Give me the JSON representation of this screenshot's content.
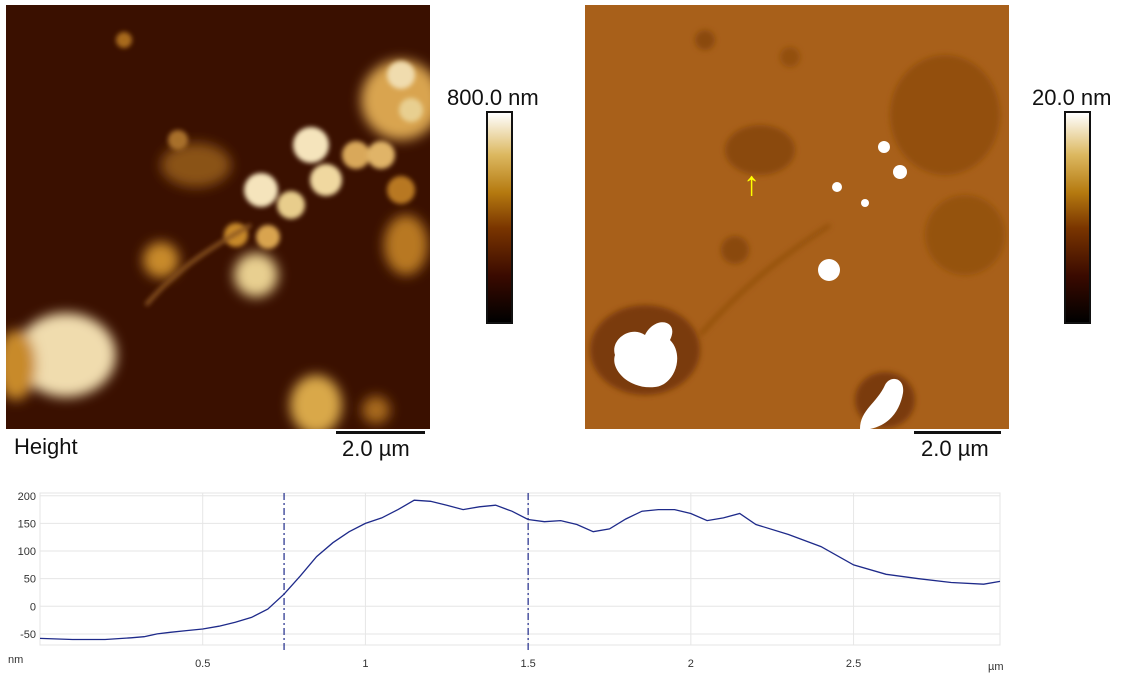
{
  "images": {
    "height": {
      "caption": "Height",
      "scalebar": "2.0 µm",
      "colorbar_max": "800.0 nm"
    },
    "amplitude": {
      "scalebar": "2.0 µm",
      "colorbar_max": "20.0 nm",
      "annotation": "↑",
      "annotation_color": "#ffff00"
    }
  },
  "colormap": [
    "#000000",
    "#3a0a00",
    "#7a3500",
    "#b57a10",
    "#dcb860",
    "#ffffff"
  ],
  "profile": {
    "y_unit": "nm",
    "x_unit": "µm",
    "y_ticks": [
      "200",
      "150",
      "100",
      "50",
      "0",
      "-50"
    ],
    "x_ticks": [
      "0.5",
      "1",
      "1.5",
      "2",
      "2.5"
    ],
    "x_range": [
      0,
      2.95
    ],
    "y_range": [
      -70,
      205
    ],
    "line_color": "#1e2a8a",
    "cursor_positions": [
      0.75,
      1.5
    ],
    "points": [
      [
        0.0,
        -58
      ],
      [
        0.1,
        -60
      ],
      [
        0.2,
        -60
      ],
      [
        0.28,
        -57
      ],
      [
        0.32,
        -55
      ],
      [
        0.36,
        -50
      ],
      [
        0.4,
        -47
      ],
      [
        0.45,
        -44
      ],
      [
        0.5,
        -41
      ],
      [
        0.55,
        -36
      ],
      [
        0.6,
        -29
      ],
      [
        0.65,
        -20
      ],
      [
        0.7,
        -5
      ],
      [
        0.75,
        22
      ],
      [
        0.8,
        55
      ],
      [
        0.85,
        90
      ],
      [
        0.9,
        115
      ],
      [
        0.95,
        135
      ],
      [
        1.0,
        150
      ],
      [
        1.05,
        160
      ],
      [
        1.1,
        175
      ],
      [
        1.15,
        192
      ],
      [
        1.2,
        190
      ],
      [
        1.25,
        183
      ],
      [
        1.3,
        175
      ],
      [
        1.35,
        180
      ],
      [
        1.4,
        183
      ],
      [
        1.45,
        172
      ],
      [
        1.5,
        157
      ],
      [
        1.55,
        153
      ],
      [
        1.6,
        155
      ],
      [
        1.65,
        148
      ],
      [
        1.7,
        135
      ],
      [
        1.75,
        140
      ],
      [
        1.8,
        158
      ],
      [
        1.85,
        172
      ],
      [
        1.9,
        175
      ],
      [
        1.95,
        175
      ],
      [
        2.0,
        168
      ],
      [
        2.05,
        155
      ],
      [
        2.1,
        160
      ],
      [
        2.15,
        168
      ],
      [
        2.2,
        148
      ],
      [
        2.3,
        130
      ],
      [
        2.4,
        108
      ],
      [
        2.5,
        75
      ],
      [
        2.6,
        58
      ],
      [
        2.7,
        50
      ],
      [
        2.8,
        43
      ],
      [
        2.9,
        40
      ],
      [
        2.95,
        45
      ]
    ]
  }
}
